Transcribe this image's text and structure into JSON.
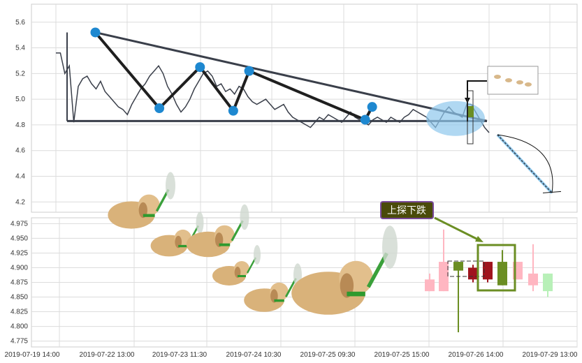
{
  "chart_data": [
    {
      "type": "line",
      "title": "",
      "xlabel": "",
      "ylabel": "",
      "ylim": [
        4.12,
        5.74
      ],
      "yticks": [
        "5.6",
        "5.4",
        "5.2",
        "5.0",
        "4.8",
        "4.6",
        "4.4",
        "4.2"
      ],
      "grid": true,
      "series": [
        {
          "values": [
            5.36,
            5.36,
            5.2,
            5.26,
            4.82,
            5.1,
            5.16,
            5.18,
            5.12,
            5.08,
            5.14,
            5.06,
            5.02,
            4.98,
            4.94,
            4.92,
            4.88,
            4.96,
            5.02,
            5.08,
            5.12,
            5.18,
            5.22,
            5.26,
            5.2,
            5.1,
            5.04,
            4.96,
            4.9,
            4.94,
            5.0,
            5.08,
            5.14,
            5.2,
            5.22,
            5.18,
            5.1,
            5.12,
            5.06,
            5.08,
            5.04,
            5.1,
            5.08,
            5.02,
            4.98,
            4.96,
            4.98,
            5.0,
            4.96,
            4.92,
            4.94,
            4.96,
            4.9,
            4.86,
            4.84,
            4.82,
            4.8,
            4.78,
            4.82,
            4.86,
            4.84,
            4.88,
            4.86,
            4.84,
            4.82,
            4.86,
            4.9,
            4.86,
            4.84,
            4.82,
            4.8,
            4.84,
            4.86,
            4.84,
            4.82,
            4.86,
            4.84,
            4.82,
            4.86,
            4.88,
            4.92,
            4.9,
            4.88,
            4.86,
            4.82,
            4.78,
            4.84,
            4.9,
            4.94,
            4.9,
            4.88,
            4.86,
            4.96,
            4.96,
            4.9,
            4.84,
            4.78,
            4.74
          ]
        }
      ],
      "pattern_points": [
        {
          "x": 0.057,
          "y": 5.52
        },
        {
          "x": 0.186,
          "y": 4.93
        },
        {
          "x": 0.268,
          "y": 5.25
        },
        {
          "x": 0.335,
          "y": 4.91
        },
        {
          "x": 0.367,
          "y": 5.22
        },
        {
          "x": 0.601,
          "y": 4.84
        },
        {
          "x": 0.615,
          "y": 4.94
        }
      ],
      "neckline_y": 4.83,
      "forecast_y": 4.27
    },
    {
      "type": "candlestick",
      "ylim": [
        4.765,
        4.985
      ],
      "yticks": [
        "4.975",
        "4.950",
        "4.925",
        "4.900",
        "4.875",
        "4.850",
        "4.825",
        "4.800",
        "4.775"
      ],
      "xticks": [
        "2019-07-19 14:00",
        "2019-07-22 13:00",
        "2019-07-23 11:30",
        "2019-07-24 10:30",
        "2019-07-25 09:30",
        "2019-07-25 15:00",
        "2019-07-26 14:00",
        "2019-07-29 13:00"
      ],
      "grid": true,
      "candles": [
        {
          "o": 4.88,
          "c": 4.86,
          "h": 4.89,
          "l": 4.86,
          "color": "#ffb6c1"
        },
        {
          "o": 4.91,
          "c": 4.86,
          "h": 4.965,
          "l": 4.86,
          "color": "#ffb6c1"
        },
        {
          "o": 4.895,
          "c": 4.91,
          "h": 4.91,
          "l": 4.79,
          "color": "#6b8e23"
        },
        {
          "o": 4.88,
          "c": 4.9,
          "h": 4.905,
          "l": 4.875,
          "color": "#a0141e"
        },
        {
          "o": 4.91,
          "c": 4.88,
          "h": 4.91,
          "l": 4.875,
          "color": "#a0141e"
        },
        {
          "o": 4.91,
          "c": 4.87,
          "h": 4.93,
          "l": 4.87,
          "color": "#6b8e23"
        },
        {
          "o": 4.88,
          "c": 4.91,
          "h": 4.91,
          "l": 4.88,
          "color": "#ffb6c1"
        },
        {
          "o": 4.89,
          "c": 4.87,
          "h": 4.94,
          "l": 4.86,
          "color": "#ffb6c1"
        },
        {
          "o": 4.89,
          "c": 4.86,
          "h": 4.89,
          "l": 4.85,
          "color": "#b8f0b8"
        }
      ]
    }
  ],
  "annotation": {
    "label": "上探下跌"
  },
  "decor": {
    "image": "puppies-with-swords-image"
  }
}
